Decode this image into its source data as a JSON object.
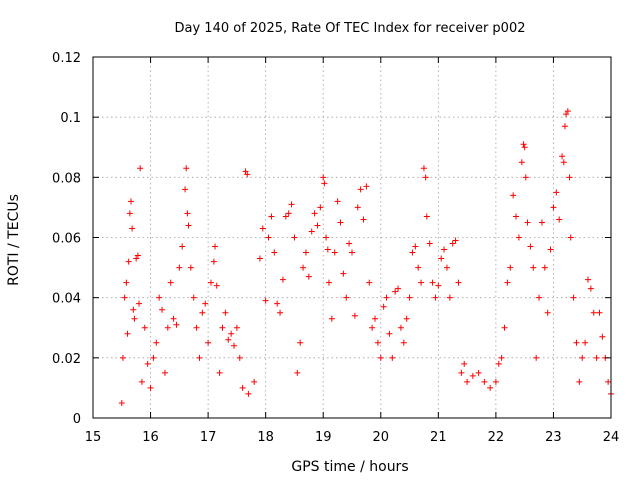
{
  "chart_data": {
    "type": "scatter",
    "title": "Day 140 of 2025, Rate Of TEC Index for receiver p002",
    "xlabel": "GPS time / hours",
    "ylabel": "ROTI / TECUs",
    "xlim": [
      15,
      24
    ],
    "ylim": [
      0,
      0.12
    ],
    "xticks": [
      15,
      16,
      17,
      18,
      19,
      20,
      21,
      22,
      23,
      24
    ],
    "xtick_labels": [
      "15",
      "16",
      "17",
      "18",
      "19",
      "20",
      "21",
      "22",
      "23",
      "24"
    ],
    "yticks": [
      0,
      0.02,
      0.04,
      0.06,
      0.08,
      0.1,
      0.12
    ],
    "ytick_labels": [
      "0",
      "0.02",
      "0.04",
      "0.06",
      "0.08",
      "0.1",
      "0.12"
    ],
    "grid": true,
    "marker": "plus",
    "series": [
      {
        "name": "ROTI",
        "color": "#ff0000",
        "points": [
          [
            15.5,
            0.005
          ],
          [
            15.52,
            0.02
          ],
          [
            15.55,
            0.04
          ],
          [
            15.58,
            0.045
          ],
          [
            15.6,
            0.028
          ],
          [
            15.62,
            0.052
          ],
          [
            15.64,
            0.068
          ],
          [
            15.66,
            0.072
          ],
          [
            15.68,
            0.063
          ],
          [
            15.7,
            0.036
          ],
          [
            15.72,
            0.033
          ],
          [
            15.75,
            0.053
          ],
          [
            15.78,
            0.054
          ],
          [
            15.8,
            0.038
          ],
          [
            15.82,
            0.083
          ],
          [
            15.85,
            0.012
          ],
          [
            15.9,
            0.03
          ],
          [
            15.95,
            0.018
          ],
          [
            16.0,
            0.01
          ],
          [
            16.05,
            0.02
          ],
          [
            16.1,
            0.025
          ],
          [
            16.15,
            0.04
          ],
          [
            16.2,
            0.036
          ],
          [
            16.25,
            0.015
          ],
          [
            16.3,
            0.03
          ],
          [
            16.35,
            0.045
          ],
          [
            16.4,
            0.033
          ],
          [
            16.45,
            0.031
          ],
          [
            16.5,
            0.05
          ],
          [
            16.55,
            0.057
          ],
          [
            16.6,
            0.076
          ],
          [
            16.62,
            0.083
          ],
          [
            16.64,
            0.068
          ],
          [
            16.66,
            0.064
          ],
          [
            16.7,
            0.05
          ],
          [
            16.75,
            0.04
          ],
          [
            16.8,
            0.03
          ],
          [
            16.85,
            0.02
          ],
          [
            16.9,
            0.035
          ],
          [
            16.95,
            0.038
          ],
          [
            17.0,
            0.025
          ],
          [
            17.05,
            0.045
          ],
          [
            17.1,
            0.052
          ],
          [
            17.12,
            0.057
          ],
          [
            17.15,
            0.044
          ],
          [
            17.2,
            0.015
          ],
          [
            17.25,
            0.03
          ],
          [
            17.3,
            0.035
          ],
          [
            17.35,
            0.026
          ],
          [
            17.4,
            0.028
          ],
          [
            17.45,
            0.024
          ],
          [
            17.5,
            0.03
          ],
          [
            17.55,
            0.02
          ],
          [
            17.6,
            0.01
          ],
          [
            17.65,
            0.082
          ],
          [
            17.68,
            0.081
          ],
          [
            17.7,
            0.008
          ],
          [
            17.8,
            0.012
          ],
          [
            17.9,
            0.053
          ],
          [
            17.95,
            0.063
          ],
          [
            18.0,
            0.039
          ],
          [
            18.05,
            0.06
          ],
          [
            18.1,
            0.067
          ],
          [
            18.15,
            0.055
          ],
          [
            18.2,
            0.038
          ],
          [
            18.25,
            0.035
          ],
          [
            18.3,
            0.046
          ],
          [
            18.35,
            0.067
          ],
          [
            18.4,
            0.068
          ],
          [
            18.45,
            0.071
          ],
          [
            18.5,
            0.06
          ],
          [
            18.55,
            0.015
          ],
          [
            18.6,
            0.025
          ],
          [
            18.65,
            0.05
          ],
          [
            18.7,
            0.055
          ],
          [
            18.75,
            0.047
          ],
          [
            18.8,
            0.062
          ],
          [
            18.85,
            0.068
          ],
          [
            18.9,
            0.064
          ],
          [
            18.95,
            0.07
          ],
          [
            19.0,
            0.08
          ],
          [
            19.02,
            0.078
          ],
          [
            19.05,
            0.06
          ],
          [
            19.08,
            0.056
          ],
          [
            19.1,
            0.045
          ],
          [
            19.15,
            0.033
          ],
          [
            19.2,
            0.055
          ],
          [
            19.25,
            0.072
          ],
          [
            19.3,
            0.065
          ],
          [
            19.35,
            0.048
          ],
          [
            19.4,
            0.04
          ],
          [
            19.45,
            0.058
          ],
          [
            19.5,
            0.055
          ],
          [
            19.55,
            0.034
          ],
          [
            19.6,
            0.07
          ],
          [
            19.65,
            0.076
          ],
          [
            19.7,
            0.066
          ],
          [
            19.75,
            0.077
          ],
          [
            19.8,
            0.045
          ],
          [
            19.85,
            0.03
          ],
          [
            19.9,
            0.033
          ],
          [
            19.95,
            0.025
          ],
          [
            20.0,
            0.02
          ],
          [
            20.05,
            0.037
          ],
          [
            20.1,
            0.04
          ],
          [
            20.15,
            0.028
          ],
          [
            20.2,
            0.02
          ],
          [
            20.25,
            0.042
          ],
          [
            20.3,
            0.043
          ],
          [
            20.35,
            0.03
          ],
          [
            20.4,
            0.025
          ],
          [
            20.45,
            0.033
          ],
          [
            20.5,
            0.04
          ],
          [
            20.55,
            0.055
          ],
          [
            20.6,
            0.057
          ],
          [
            20.65,
            0.05
          ],
          [
            20.7,
            0.045
          ],
          [
            20.75,
            0.083
          ],
          [
            20.78,
            0.08
          ],
          [
            20.8,
            0.067
          ],
          [
            20.85,
            0.058
          ],
          [
            20.9,
            0.045
          ],
          [
            20.95,
            0.04
          ],
          [
            21.0,
            0.044
          ],
          [
            21.05,
            0.053
          ],
          [
            21.1,
            0.056
          ],
          [
            21.15,
            0.05
          ],
          [
            21.2,
            0.04
          ],
          [
            21.25,
            0.058
          ],
          [
            21.3,
            0.059
          ],
          [
            21.35,
            0.045
          ],
          [
            21.4,
            0.015
          ],
          [
            21.45,
            0.018
          ],
          [
            21.5,
            0.012
          ],
          [
            21.6,
            0.014
          ],
          [
            21.7,
            0.015
          ],
          [
            21.8,
            0.012
          ],
          [
            21.9,
            0.01
          ],
          [
            22.0,
            0.012
          ],
          [
            22.05,
            0.018
          ],
          [
            22.1,
            0.02
          ],
          [
            22.15,
            0.03
          ],
          [
            22.2,
            0.045
          ],
          [
            22.25,
            0.05
          ],
          [
            22.3,
            0.074
          ],
          [
            22.35,
            0.067
          ],
          [
            22.4,
            0.06
          ],
          [
            22.45,
            0.085
          ],
          [
            22.48,
            0.091
          ],
          [
            22.5,
            0.09
          ],
          [
            22.52,
            0.08
          ],
          [
            22.55,
            0.065
          ],
          [
            22.6,
            0.057
          ],
          [
            22.65,
            0.05
          ],
          [
            22.7,
            0.02
          ],
          [
            22.75,
            0.04
          ],
          [
            22.8,
            0.065
          ],
          [
            22.85,
            0.05
          ],
          [
            22.9,
            0.035
          ],
          [
            22.95,
            0.056
          ],
          [
            23.0,
            0.07
          ],
          [
            23.05,
            0.075
          ],
          [
            23.1,
            0.066
          ],
          [
            23.15,
            0.087
          ],
          [
            23.18,
            0.085
          ],
          [
            23.2,
            0.097
          ],
          [
            23.22,
            0.101
          ],
          [
            23.25,
            0.102
          ],
          [
            23.28,
            0.08
          ],
          [
            23.3,
            0.06
          ],
          [
            23.35,
            0.04
          ],
          [
            23.4,
            0.025
          ],
          [
            23.45,
            0.012
          ],
          [
            23.5,
            0.02
          ],
          [
            23.55,
            0.025
          ],
          [
            23.6,
            0.046
          ],
          [
            23.65,
            0.043
          ],
          [
            23.7,
            0.035
          ],
          [
            23.75,
            0.02
          ],
          [
            23.8,
            0.035
          ],
          [
            23.85,
            0.027
          ],
          [
            23.9,
            0.02
          ],
          [
            23.95,
            0.012
          ],
          [
            24.0,
            0.008
          ]
        ]
      }
    ]
  }
}
